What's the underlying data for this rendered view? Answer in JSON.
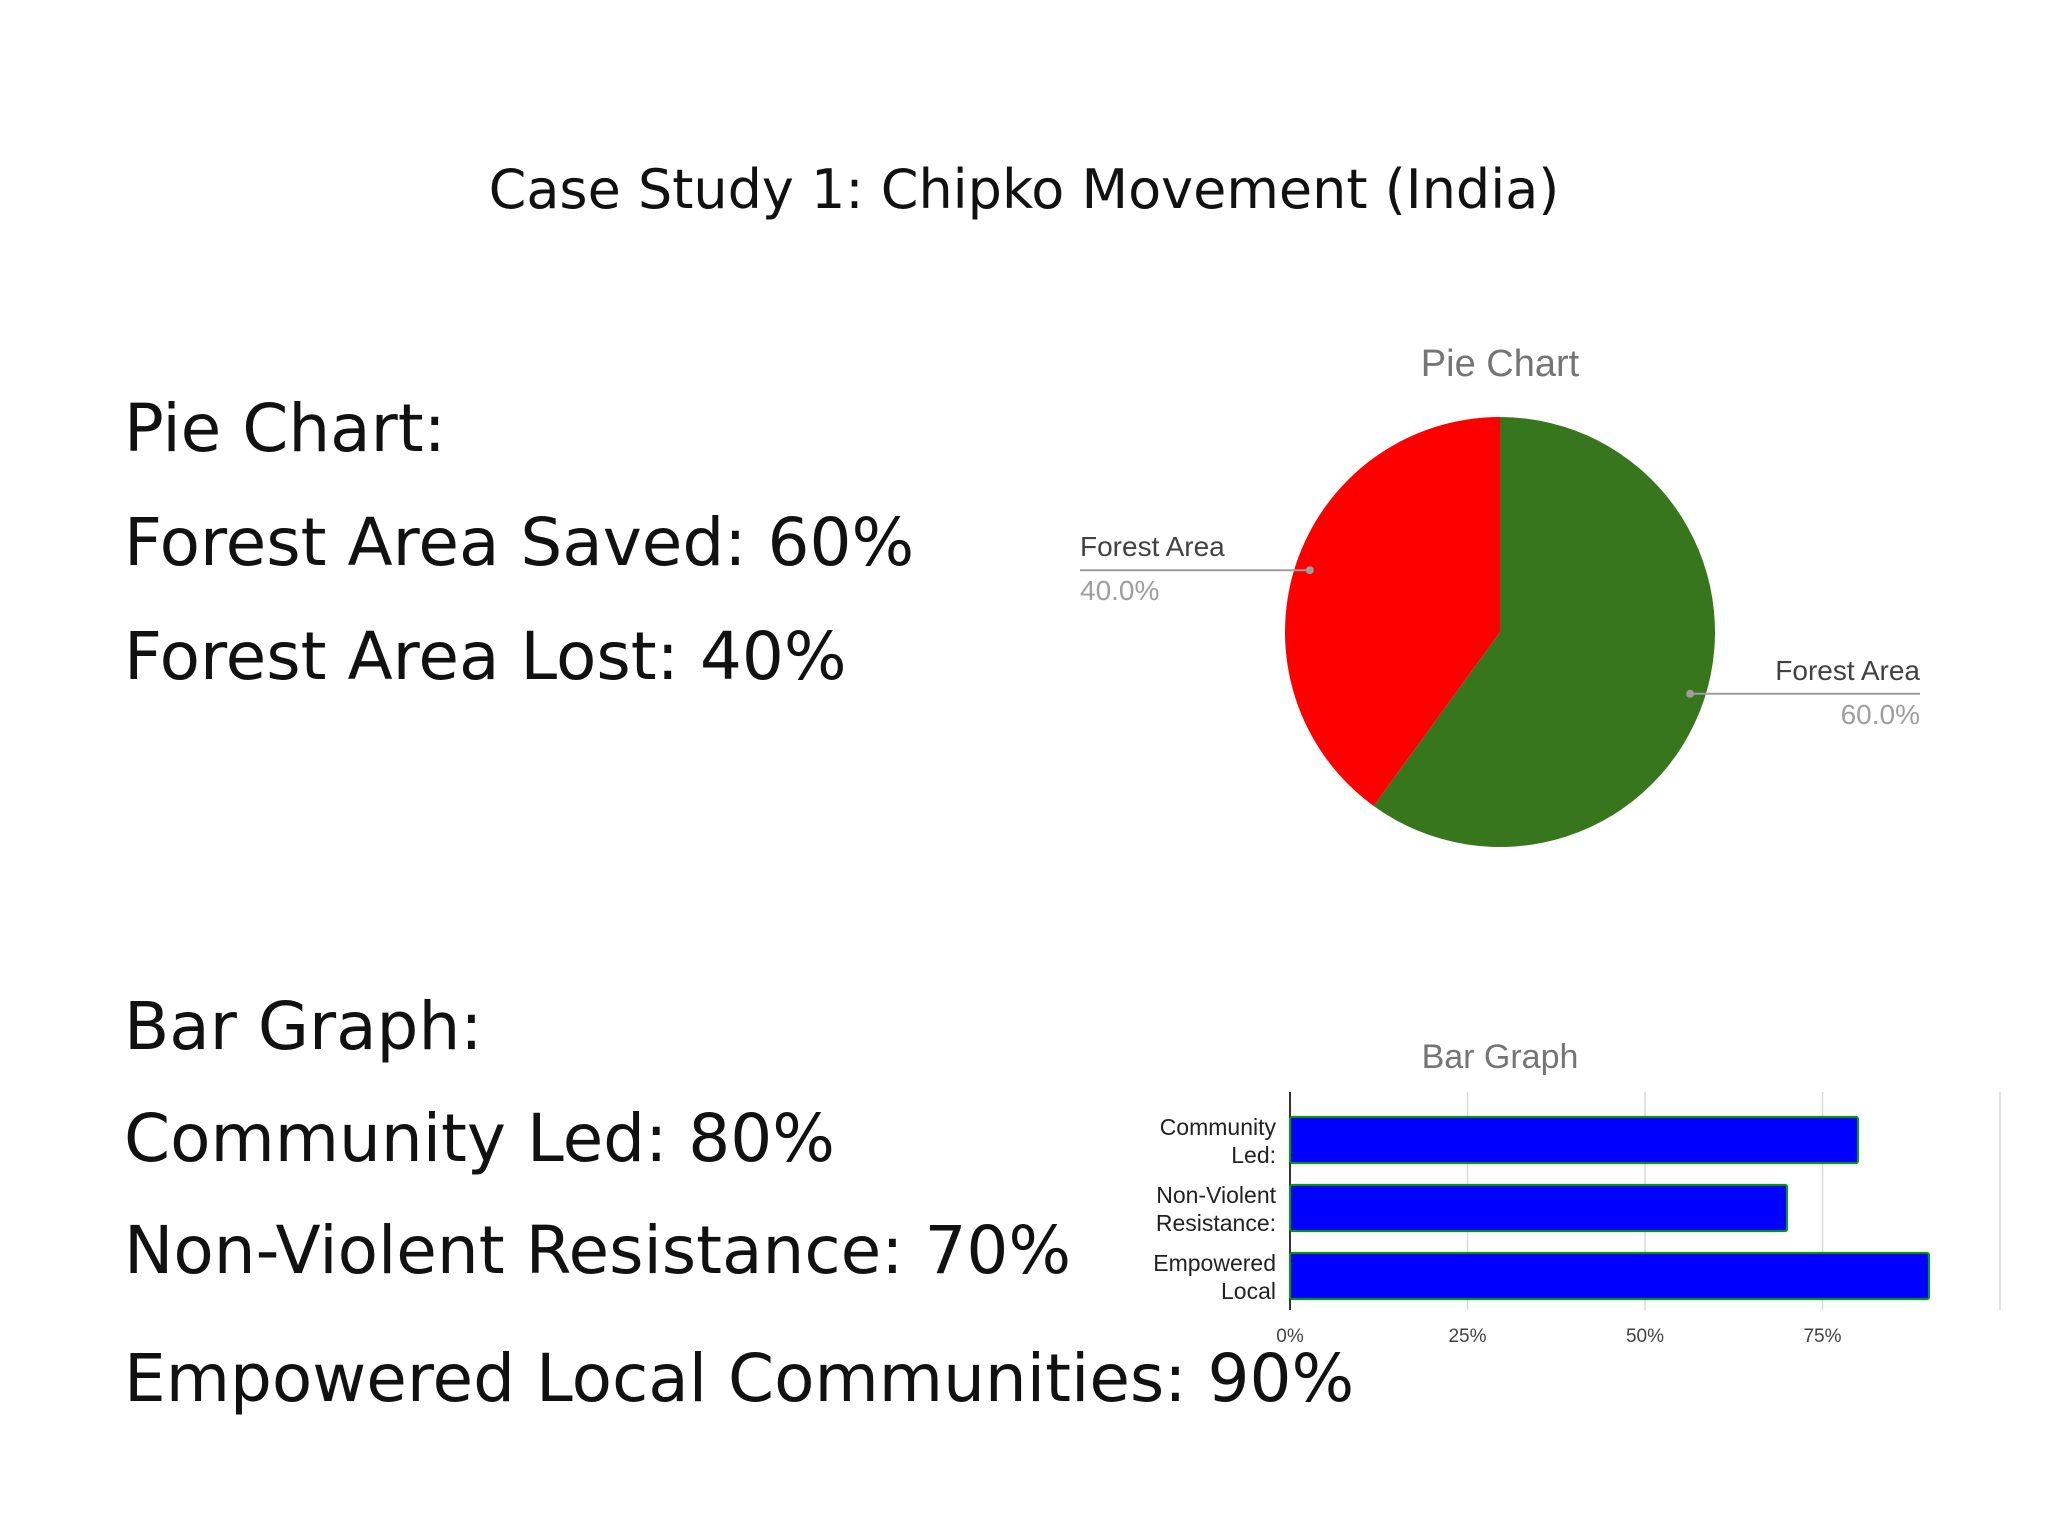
{
  "slide": {
    "title": "Case Study 1: Chipko Movement (India)",
    "pie_section": {
      "heading": "Pie Chart:",
      "lines": [
        "Forest Area Saved: 60%",
        "Forest Area Lost: 40%"
      ]
    },
    "bar_section": {
      "heading": "Bar Graph:",
      "lines": [
        "Community Led: 80%",
        "Non-Violent Resistance: 70%",
        "Empowered Local Communities: 90%"
      ]
    }
  },
  "chart_data": [
    {
      "type": "pie",
      "title": "Pie Chart",
      "slices": [
        {
          "label": "Forest Area",
          "value": 60.0,
          "display": "60.0%",
          "color": "#38761d"
        },
        {
          "label": "Forest Area",
          "value": 40.0,
          "display": "40.0%",
          "color": "#ff0000"
        }
      ]
    },
    {
      "type": "bar",
      "orientation": "horizontal",
      "title": "Bar Graph",
      "categories": [
        [
          "Community",
          "Led:"
        ],
        [
          "Non-Violent",
          "Resistance:"
        ],
        [
          "Empowered",
          "Local"
        ]
      ],
      "values": [
        80,
        70,
        90
      ],
      "bar_color": "#0000ff",
      "bar_outline_color": "#00a000",
      "xlim": [
        0,
        100
      ],
      "x_ticks": [
        "0%",
        "25%",
        "50%",
        "75%"
      ],
      "grid": true
    }
  ]
}
